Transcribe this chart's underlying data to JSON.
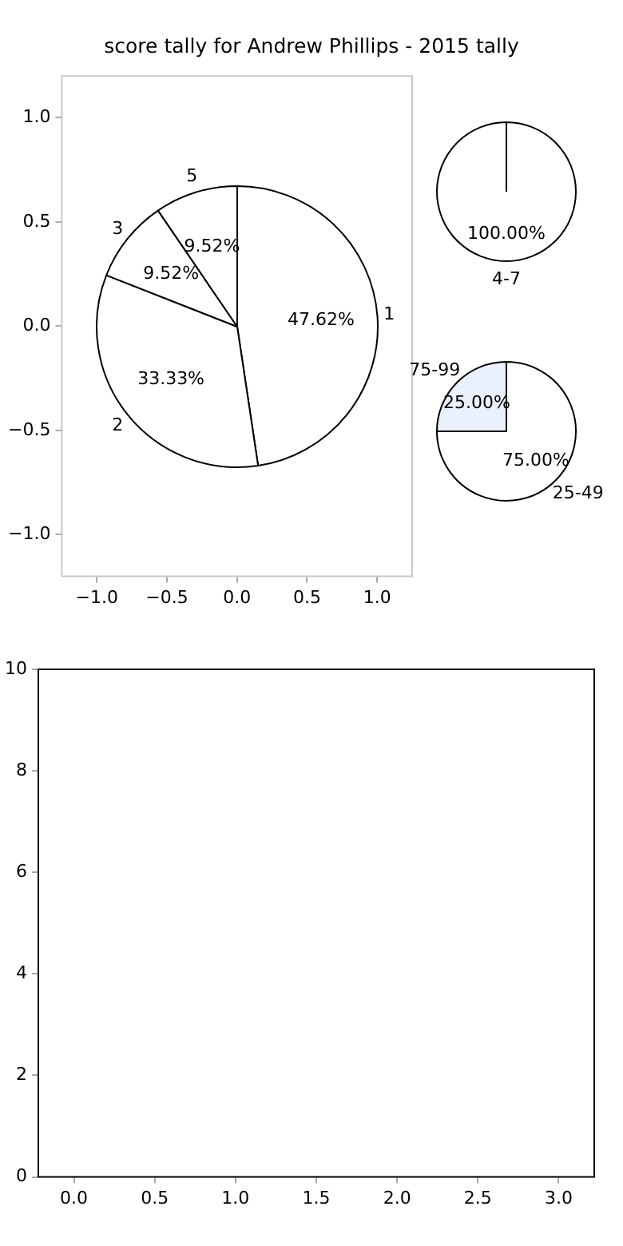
{
  "chart_data": [
    {
      "type": "scatter",
      "title": "score tally for Andrew Phillips - 2015 tally",
      "xlim": [
        -1.25,
        1.25
      ],
      "ylim": [
        -1.2,
        1.2
      ],
      "xticks": [
        {
          "value": -1,
          "label": "−1.0"
        },
        {
          "value": -0.5,
          "label": "−0.5"
        },
        {
          "value": 0,
          "label": "0.0"
        },
        {
          "value": 0.5,
          "label": "0.5"
        },
        {
          "value": 1,
          "label": "1.0"
        }
      ],
      "yticks": [
        {
          "value": -1,
          "label": "−1.0"
        },
        {
          "value": -0.5,
          "label": "−0.5"
        },
        {
          "value": 0,
          "label": "0.0"
        },
        {
          "value": 0.5,
          "label": "0.5"
        },
        {
          "value": 1,
          "label": "1.0"
        }
      ]
    },
    {
      "type": "pie",
      "categories": [
        "1",
        "2",
        "3",
        "5"
      ],
      "values": [
        47.62,
        33.33,
        9.52,
        9.52
      ],
      "value_labels": [
        "47.62%",
        "33.33%",
        "9.52%",
        "9.52%"
      ],
      "colors": [
        "#ffffff",
        "#ffffff",
        "#ffffff",
        "#ffffff"
      ]
    },
    {
      "type": "pie",
      "categories": [
        "4-7"
      ],
      "values": [
        100
      ],
      "value_labels": [
        "100.00%"
      ],
      "colors": [
        "#ffffff"
      ]
    },
    {
      "type": "pie",
      "categories": [
        "25-49",
        "75-99"
      ],
      "values": [
        75,
        25
      ],
      "value_labels": [
        "75.00%",
        "25.00%"
      ],
      "colors": [
        "#ffffff",
        "#eaf0fc"
      ]
    },
    {
      "type": "scatter",
      "xlim": [
        -0.22,
        3.22
      ],
      "ylim": [
        0,
        10
      ],
      "xticks": [
        {
          "value": 0,
          "label": "0.0"
        },
        {
          "value": 0.5,
          "label": "0.5"
        },
        {
          "value": 1,
          "label": "1.0"
        },
        {
          "value": 1.5,
          "label": "1.5"
        },
        {
          "value": 2,
          "label": "2.0"
        },
        {
          "value": 2.5,
          "label": "2.5"
        },
        {
          "value": 3,
          "label": "3.0"
        }
      ],
      "yticks": [
        0,
        2,
        4,
        6,
        8,
        10
      ]
    }
  ]
}
